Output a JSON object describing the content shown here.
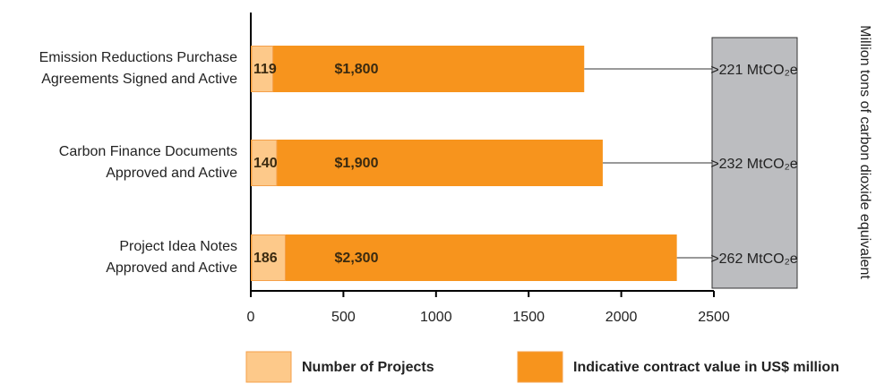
{
  "chart_data": {
    "type": "bar",
    "categories": [
      [
        "Emission Reductions Purchase",
        "Agreements Signed and Active"
      ],
      [
        "Carbon Finance Documents",
        "Approved and Active"
      ],
      [
        "Project Idea Notes",
        "Approved and Active"
      ]
    ],
    "series": [
      {
        "name": "Number of Projects",
        "color": "#fdc98a",
        "values": [
          119,
          140,
          186
        ]
      },
      {
        "name": "Indicative contract value in US$ million",
        "color": "#f7941d",
        "values": [
          1800,
          1900,
          2300
        ],
        "value_labels": [
          "$1,800",
          "$1,900",
          "$2,300"
        ]
      }
    ],
    "annotations": [
      ">221 MtCO₂e",
      ">232 MtCO₂e",
      ">262 MtCO₂e"
    ],
    "y2_label": "Million tons of carbon dioxide equivalent",
    "xlim": [
      0,
      2500
    ],
    "xticks": [
      0,
      500,
      1000,
      1500,
      2000,
      2500
    ],
    "legend": "bottom"
  }
}
